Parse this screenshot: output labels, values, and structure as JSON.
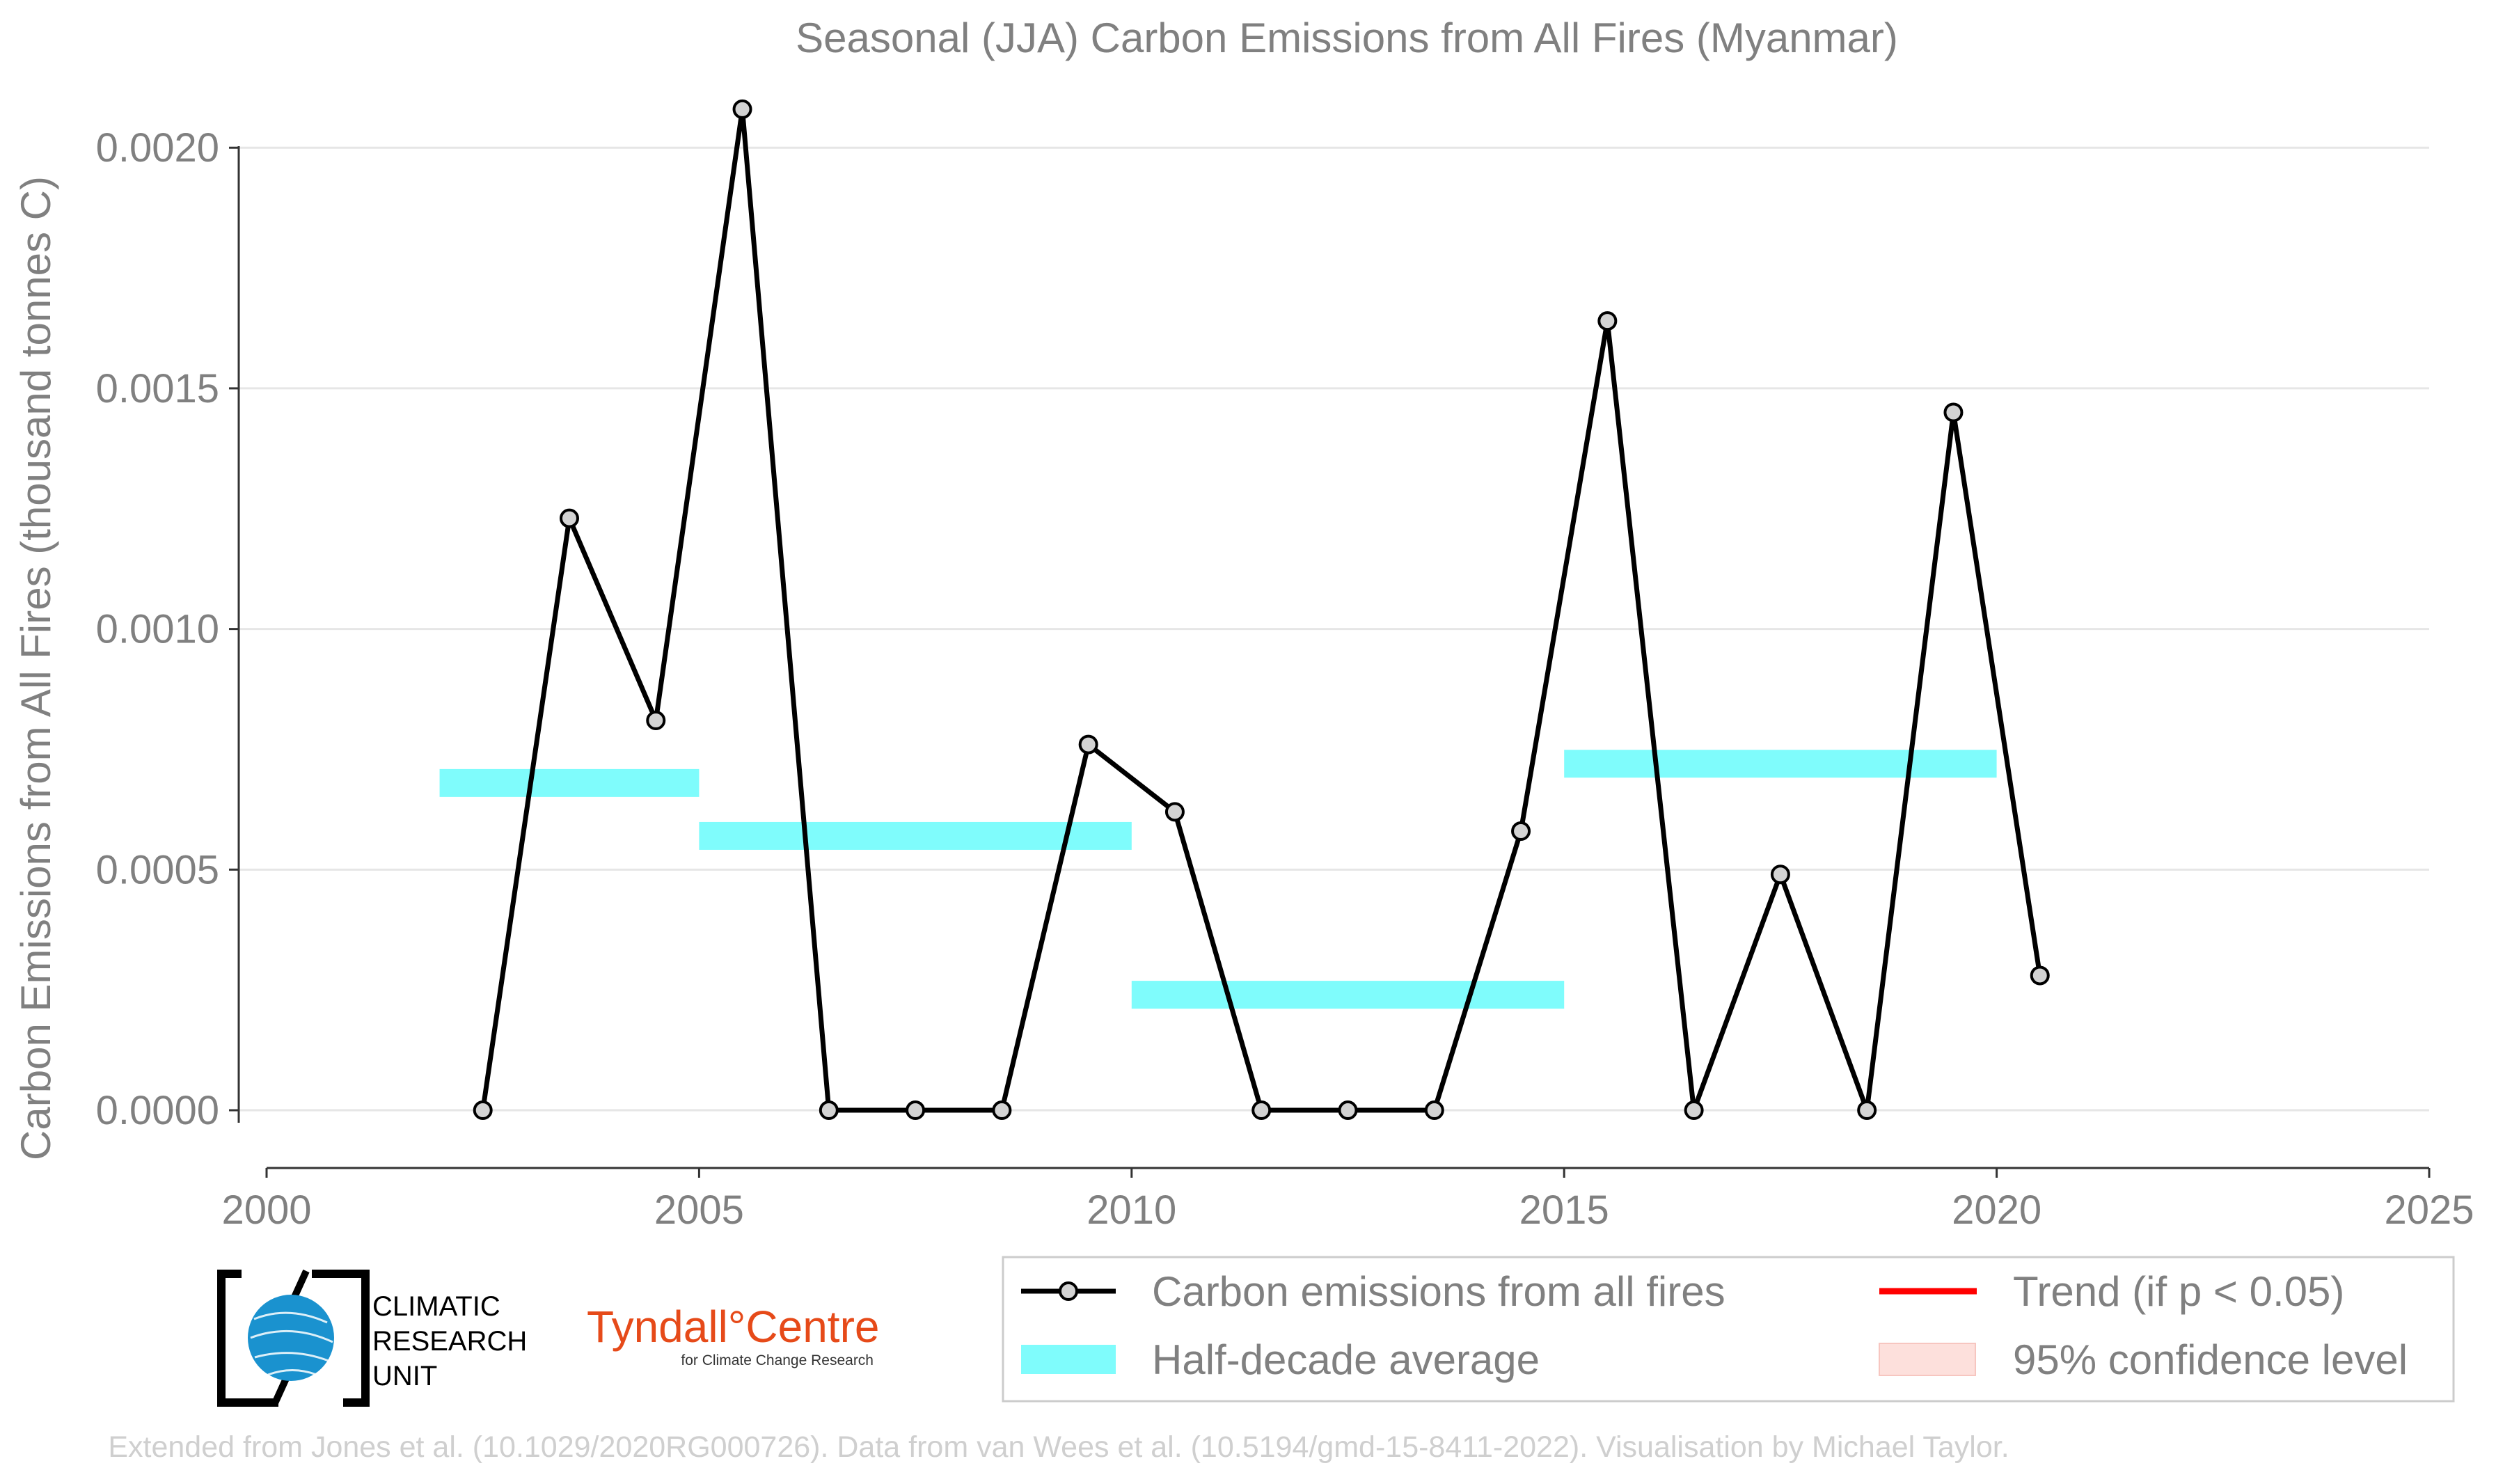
{
  "chart_data": {
    "type": "line",
    "title": "Seasonal (JJA) Carbon Emissions from All Fires (Myanmar)",
    "xlabel": "",
    "ylabel": "Carbon Emissions from All Fires (thousand tonnes C)",
    "xlim": [
      2000,
      2025
    ],
    "ylim": [
      -0.00012,
      0.00209
    ],
    "x_ticks": [
      2000,
      2005,
      2010,
      2015,
      2020,
      2025
    ],
    "y_ticks": [
      0.0,
      0.0005,
      0.001,
      0.0015,
      0.002
    ],
    "y_tick_labels": [
      "0.0000",
      "0.0005",
      "0.0010",
      "0.0015",
      "0.0020"
    ],
    "x_tick_labels": [
      "2000",
      "2005",
      "2010",
      "2015",
      "2020",
      "2025"
    ],
    "grid": "horizontal",
    "series": [
      {
        "name": "Carbon emissions from all fires",
        "kind": "line-markers",
        "color": "#000000",
        "marker_fill": "#d3d3d3",
        "x": [
          2002.5,
          2003.5,
          2004.5,
          2005.5,
          2006.5,
          2007.5,
          2008.5,
          2009.5,
          2010.5,
          2011.5,
          2012.5,
          2013.5,
          2014.5,
          2015.5,
          2016.5,
          2017.5,
          2018.5,
          2019.5,
          2020.5
        ],
        "y": [
          0.0,
          0.00123,
          0.00081,
          0.00208,
          0.0,
          0.0,
          0.0,
          0.00076,
          0.00062,
          0.0,
          0.0,
          0.0,
          0.00058,
          0.00164,
          0.0,
          0.00049,
          0.0,
          0.00145,
          0.00028
        ]
      },
      {
        "name": "Half-decade average",
        "kind": "segments",
        "color": "#7ffcfc",
        "segments": [
          {
            "x_start": 2002,
            "x_end": 2005,
            "value": 0.00068
          },
          {
            "x_start": 2005,
            "x_end": 2010,
            "value": 0.00057
          },
          {
            "x_start": 2010,
            "x_end": 2015,
            "value": 0.00024
          },
          {
            "x_start": 2015,
            "x_end": 2020,
            "value": 0.00072
          }
        ]
      }
    ],
    "legend": {
      "placement": "bottom-right",
      "entries": [
        {
          "label": "Carbon emissions from all fires",
          "style": "line-marker",
          "color": "#000000"
        },
        {
          "label": "Trend (if p < 0.05)",
          "style": "line",
          "color": "#ff0000"
        },
        {
          "label": "Half-decade average",
          "style": "band",
          "color": "#7ffcfc"
        },
        {
          "label": "95% confidence level",
          "style": "patch",
          "color": "#fde0dc"
        }
      ]
    }
  },
  "logos": {
    "cru_lines": [
      "CLIMATIC",
      "RESEARCH",
      "UNIT"
    ],
    "tyndall_name": "Tyndall°Centre",
    "tyndall_sub": "for Climate Change Research"
  },
  "footer": "Extended from Jones et al. (10.1029/2020RG000726). Data from van Wees et al. (10.5194/gmd-15-8411-2022). Visualisation by Michael Taylor."
}
